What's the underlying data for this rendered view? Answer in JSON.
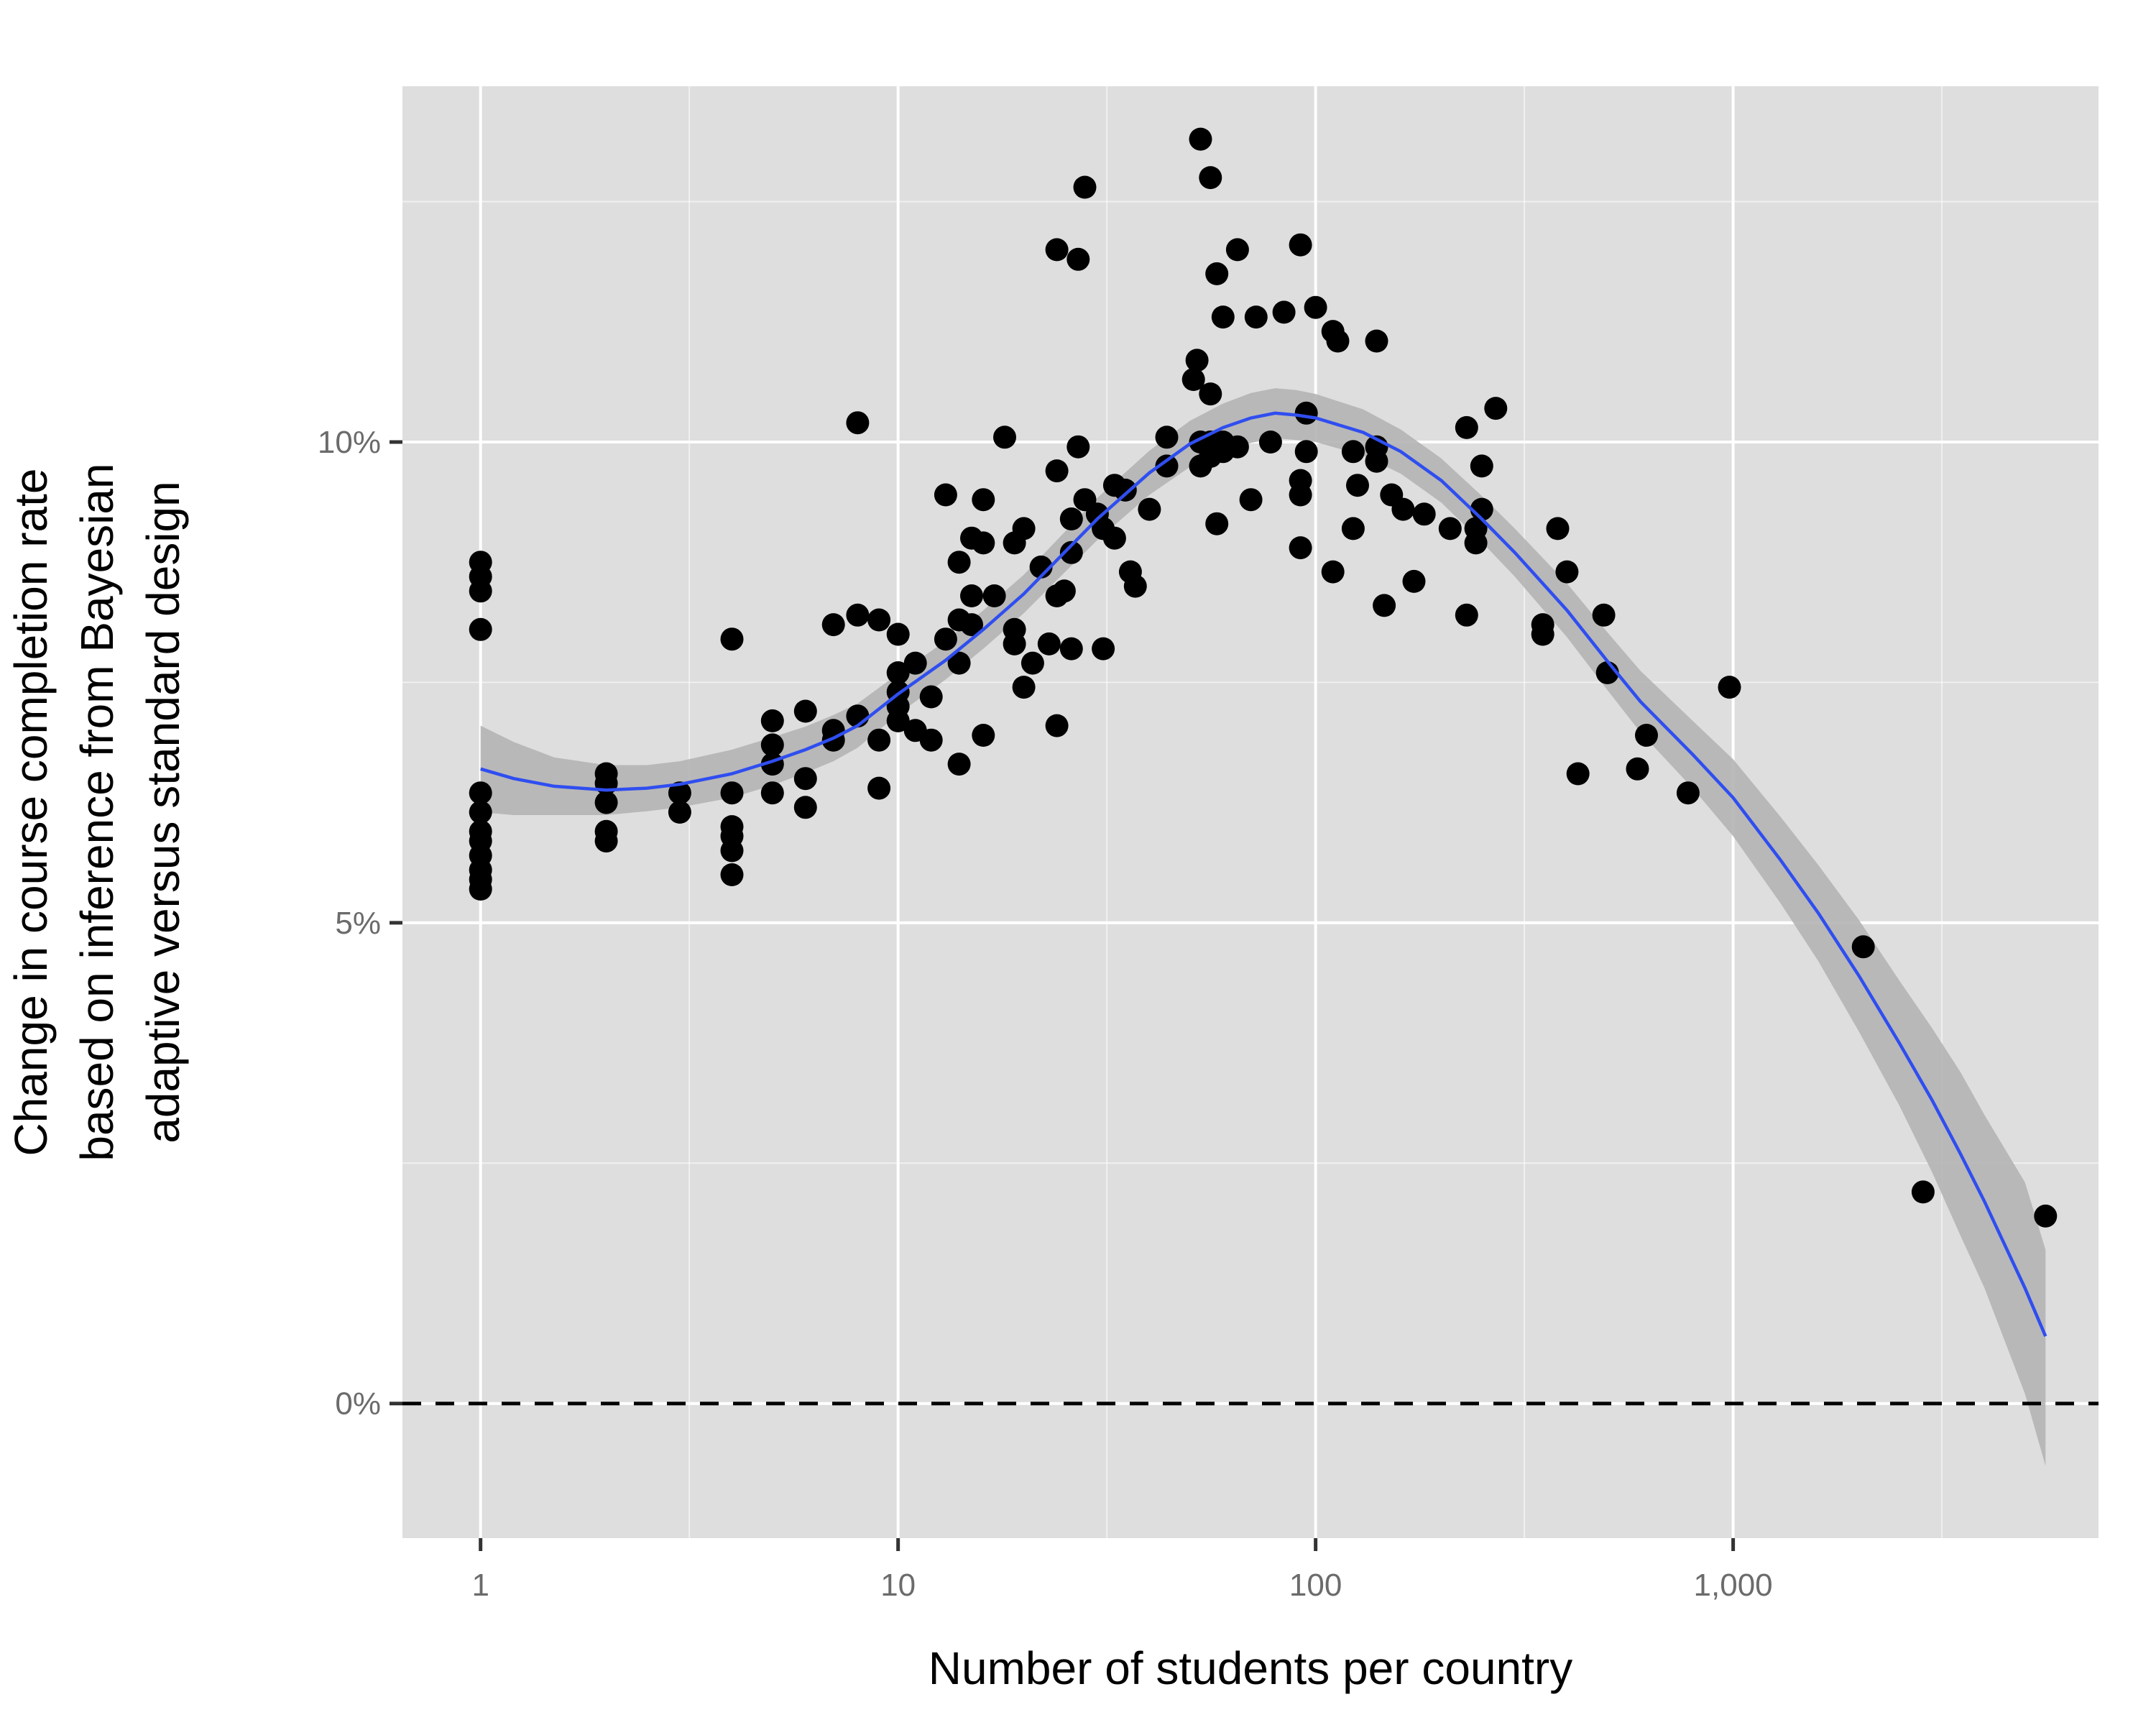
{
  "chart_data": {
    "type": "scatter",
    "title": "",
    "xlabel": "Number of students per country",
    "ylabel_lines": [
      "Change in course completion rate",
      "based on inference from Bayesian",
      "adaptive versus standard design"
    ],
    "x_scale": "log10",
    "xlim": [
      0.65,
      7500
    ],
    "ylim": [
      -1.4,
      13.7
    ],
    "x_ticks": [
      {
        "value": 1,
        "label": "1"
      },
      {
        "value": 10,
        "label": "10"
      },
      {
        "value": 100,
        "label": "100"
      },
      {
        "value": 1000,
        "label": "1,000"
      }
    ],
    "x_minor_ticks": [
      3.162,
      31.62,
      316.2,
      3162
    ],
    "y_ticks": [
      {
        "value": 0,
        "label": "0%"
      },
      {
        "value": 5,
        "label": "5%"
      },
      {
        "value": 10,
        "label": "10%"
      }
    ],
    "y_minor_ticks": [
      2.5,
      7.5,
      12.5
    ],
    "grid": true,
    "reference_line": {
      "y": 0,
      "style": "dashed",
      "color": "#000000"
    },
    "colors": {
      "panel": "#dedede",
      "grid": "#ffffff",
      "points": "#000000",
      "smooth_line": "#2f4ef0",
      "ribbon": "#b4b4b4"
    },
    "points": [
      [
        1,
        8.75
      ],
      [
        1,
        8.6
      ],
      [
        1,
        8.45
      ],
      [
        1,
        8.05
      ],
      [
        1,
        6.35
      ],
      [
        1,
        6.15
      ],
      [
        1,
        5.95
      ],
      [
        1,
        5.85
      ],
      [
        1,
        5.7
      ],
      [
        1,
        5.55
      ],
      [
        1,
        5.45
      ],
      [
        1,
        5.35
      ],
      [
        2,
        6.55
      ],
      [
        2,
        6.45
      ],
      [
        2,
        6.25
      ],
      [
        2,
        5.95
      ],
      [
        2,
        5.85
      ],
      [
        3,
        6.35
      ],
      [
        3,
        6.15
      ],
      [
        4,
        7.95
      ],
      [
        4,
        6.35
      ],
      [
        4,
        6.0
      ],
      [
        4,
        5.9
      ],
      [
        4,
        5.75
      ],
      [
        4,
        5.5
      ],
      [
        5,
        7.1
      ],
      [
        5,
        6.85
      ],
      [
        5,
        6.65
      ],
      [
        5,
        6.35
      ],
      [
        6,
        7.2
      ],
      [
        6,
        6.5
      ],
      [
        6,
        6.2
      ],
      [
        7,
        8.1
      ],
      [
        7,
        7.0
      ],
      [
        7,
        6.9
      ],
      [
        8,
        10.2
      ],
      [
        8,
        8.2
      ],
      [
        8,
        7.15
      ],
      [
        9,
        8.15
      ],
      [
        9,
        6.9
      ],
      [
        9,
        6.4
      ],
      [
        10,
        8.0
      ],
      [
        10,
        7.6
      ],
      [
        10,
        7.4
      ],
      [
        10,
        7.25
      ],
      [
        10,
        7.1
      ],
      [
        11,
        7.7
      ],
      [
        11,
        7.0
      ],
      [
        12,
        7.35
      ],
      [
        12,
        6.9
      ],
      [
        13,
        9.45
      ],
      [
        13,
        7.95
      ],
      [
        14,
        8.75
      ],
      [
        14,
        8.15
      ],
      [
        14,
        7.7
      ],
      [
        14,
        6.65
      ],
      [
        15,
        9.0
      ],
      [
        15,
        8.4
      ],
      [
        15,
        8.1
      ],
      [
        16,
        9.4
      ],
      [
        16,
        8.95
      ],
      [
        16,
        6.95
      ],
      [
        17,
        8.4
      ],
      [
        18,
        10.05
      ],
      [
        19,
        8.95
      ],
      [
        19,
        8.05
      ],
      [
        19,
        7.9
      ],
      [
        20,
        9.1
      ],
      [
        20,
        7.45
      ],
      [
        21,
        7.7
      ],
      [
        22,
        8.7
      ],
      [
        23,
        7.9
      ],
      [
        24,
        12.0
      ],
      [
        24,
        9.7
      ],
      [
        24,
        8.4
      ],
      [
        24,
        7.05
      ],
      [
        25,
        8.45
      ],
      [
        26,
        9.2
      ],
      [
        26,
        8.85
      ],
      [
        26,
        7.85
      ],
      [
        27,
        11.9
      ],
      [
        27,
        9.95
      ],
      [
        28,
        12.65
      ],
      [
        28,
        9.4
      ],
      [
        30,
        9.25
      ],
      [
        31,
        9.1
      ],
      [
        31,
        7.85
      ],
      [
        33,
        9.55
      ],
      [
        33,
        9.0
      ],
      [
        35,
        9.5
      ],
      [
        36,
        8.65
      ],
      [
        37,
        8.5
      ],
      [
        40,
        9.3
      ],
      [
        44,
        10.05
      ],
      [
        44,
        9.75
      ],
      [
        51,
        10.65
      ],
      [
        52,
        10.85
      ],
      [
        53,
        13.15
      ],
      [
        53,
        10.0
      ],
      [
        53,
        9.75
      ],
      [
        56,
        12.75
      ],
      [
        56,
        10.5
      ],
      [
        56,
        10.0
      ],
      [
        56,
        9.85
      ],
      [
        58,
        11.75
      ],
      [
        58,
        9.15
      ],
      [
        60,
        11.3
      ],
      [
        60,
        10.0
      ],
      [
        60,
        9.95
      ],
      [
        60,
        9.9
      ],
      [
        65,
        12.0
      ],
      [
        65,
        9.95
      ],
      [
        70,
        9.4
      ],
      [
        72,
        11.3
      ],
      [
        78,
        10.0
      ],
      [
        84,
        11.35
      ],
      [
        92,
        12.05
      ],
      [
        92,
        9.6
      ],
      [
        92,
        9.45
      ],
      [
        92,
        8.9
      ],
      [
        95,
        10.3
      ],
      [
        95,
        9.9
      ],
      [
        100,
        11.4
      ],
      [
        110,
        11.15
      ],
      [
        110,
        8.65
      ],
      [
        113,
        11.05
      ],
      [
        123,
        9.9
      ],
      [
        123,
        9.1
      ],
      [
        126,
        9.55
      ],
      [
        140,
        11.05
      ],
      [
        140,
        9.95
      ],
      [
        140,
        9.8
      ],
      [
        146,
        8.3
      ],
      [
        152,
        9.45
      ],
      [
        162,
        9.3
      ],
      [
        172,
        8.55
      ],
      [
        182,
        9.25
      ],
      [
        210,
        9.1
      ],
      [
        230,
        10.15
      ],
      [
        230,
        8.2
      ],
      [
        242,
        9.1
      ],
      [
        242,
        8.95
      ],
      [
        250,
        9.75
      ],
      [
        250,
        9.3
      ],
      [
        270,
        10.35
      ],
      [
        350,
        8.1
      ],
      [
        350,
        8.0
      ],
      [
        380,
        9.1
      ],
      [
        400,
        8.65
      ],
      [
        425,
        6.55
      ],
      [
        490,
        8.2
      ],
      [
        500,
        7.6
      ],
      [
        590,
        6.6
      ],
      [
        620,
        6.95
      ],
      [
        780,
        6.35
      ],
      [
        980,
        7.45
      ],
      [
        2050,
        4.75
      ],
      [
        2850,
        2.2
      ],
      [
        5600,
        1.95
      ]
    ],
    "smooth_fit": [
      [
        1,
        6.6,
        6.15,
        7.05
      ],
      [
        1.2,
        6.5,
        6.12,
        6.88
      ],
      [
        1.5,
        6.42,
        6.12,
        6.72
      ],
      [
        2,
        6.38,
        6.12,
        6.64
      ],
      [
        2.5,
        6.4,
        6.16,
        6.64
      ],
      [
        3,
        6.44,
        6.2,
        6.68
      ],
      [
        4,
        6.55,
        6.3,
        6.8
      ],
      [
        5,
        6.68,
        6.43,
        6.93
      ],
      [
        6,
        6.8,
        6.56,
        7.04
      ],
      [
        7,
        6.92,
        6.68,
        7.16
      ],
      [
        8,
        7.05,
        6.82,
        7.28
      ],
      [
        10,
        7.38,
        7.17,
        7.59
      ],
      [
        13,
        7.73,
        7.53,
        7.93
      ],
      [
        16,
        8.05,
        7.85,
        8.25
      ],
      [
        20,
        8.42,
        8.22,
        8.62
      ],
      [
        25,
        8.85,
        8.64,
        9.06
      ],
      [
        30,
        9.2,
        8.98,
        9.42
      ],
      [
        40,
        9.68,
        9.45,
        9.91
      ],
      [
        50,
        9.98,
        9.74,
        10.22
      ],
      [
        60,
        10.15,
        9.9,
        10.4
      ],
      [
        70,
        10.25,
        9.99,
        10.51
      ],
      [
        80,
        10.3,
        10.04,
        10.56
      ],
      [
        90,
        10.28,
        10.02,
        10.54
      ],
      [
        100,
        10.25,
        10.0,
        10.5
      ],
      [
        130,
        10.1,
        9.86,
        10.34
      ],
      [
        160,
        9.9,
        9.67,
        10.13
      ],
      [
        200,
        9.6,
        9.37,
        9.83
      ],
      [
        250,
        9.2,
        8.96,
        9.44
      ],
      [
        300,
        8.85,
        8.6,
        9.1
      ],
      [
        400,
        8.25,
        7.97,
        8.53
      ],
      [
        500,
        7.72,
        7.42,
        8.02
      ],
      [
        600,
        7.3,
        6.98,
        7.62
      ],
      [
        800,
        6.75,
        6.4,
        7.1
      ],
      [
        1000,
        6.3,
        5.9,
        6.7
      ],
      [
        1300,
        5.65,
        5.2,
        6.1
      ],
      [
        1600,
        5.1,
        4.6,
        5.6
      ],
      [
        2000,
        4.45,
        3.87,
        5.03
      ],
      [
        2500,
        3.75,
        3.1,
        4.4
      ],
      [
        3000,
        3.15,
        2.4,
        3.9
      ],
      [
        3500,
        2.6,
        1.75,
        3.45
      ],
      [
        4000,
        2.1,
        1.2,
        3.0
      ],
      [
        5000,
        1.2,
        0.1,
        2.3
      ],
      [
        5600,
        0.7,
        -0.65,
        1.6
      ]
    ]
  }
}
